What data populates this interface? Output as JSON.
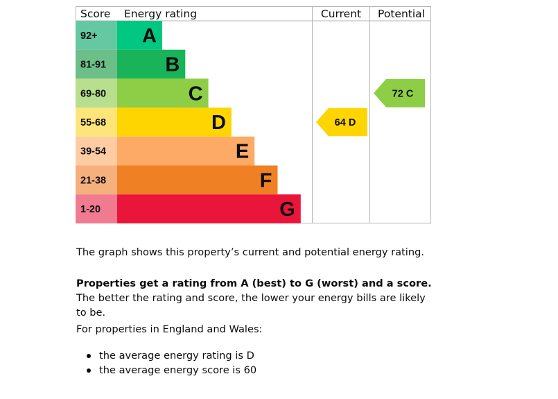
{
  "chart_data": {
    "type": "bar",
    "headers": {
      "score": "Score",
      "rating": "Energy rating",
      "current": "Current",
      "potential": "Potential"
    },
    "bands": [
      {
        "letter": "A",
        "range": "92+",
        "color": "#00c781",
        "score_color": "#64c8a2"
      },
      {
        "letter": "B",
        "range": "81-91",
        "color": "#19b459",
        "score_color": "#6dbf89"
      },
      {
        "letter": "C",
        "range": "69-80",
        "color": "#8dce46",
        "score_color": "#b7df8d"
      },
      {
        "letter": "D",
        "range": "55-68",
        "color": "#ffd500",
        "score_color": "#fee57a"
      },
      {
        "letter": "E",
        "range": "39-54",
        "color": "#fcaa65",
        "score_color": "#fdcca3"
      },
      {
        "letter": "F",
        "range": "21-38",
        "color": "#ef8023",
        "score_color": "#f5b07d"
      },
      {
        "letter": "G",
        "range": "1-20",
        "color": "#e9153b",
        "score_color": "#f07b90"
      }
    ],
    "current": {
      "score": 64,
      "band": "D",
      "label": "64  D"
    },
    "potential": {
      "score": 72,
      "band": "C",
      "label": "72  C"
    }
  },
  "text": {
    "p1": "The graph shows this property’s current and potential energy rating.",
    "p2_bold": "Properties get a rating from A (best) to G (worst) and a score.",
    "p2_rest": " The better the rating and score, the lower your energy bills are likely to be.",
    "p3": "For properties in England and Wales:",
    "bullets": [
      "the average energy rating is D",
      "the average energy score is 60"
    ]
  }
}
